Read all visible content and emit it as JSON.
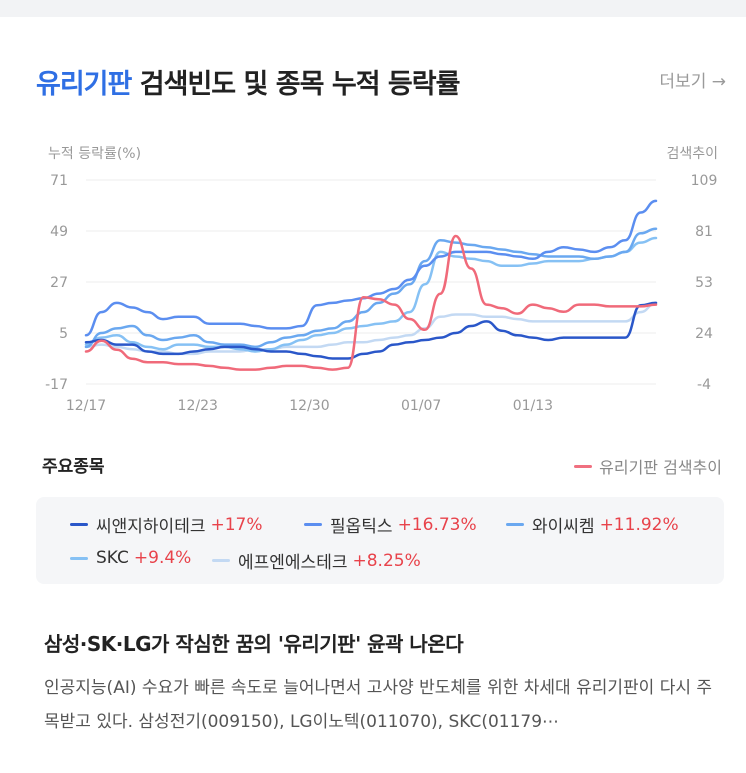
{
  "header": {
    "title_keyword": "유리기판",
    "title_rest": " 검색빈도 및 종목 누적 등락률",
    "more_label": "더보기 →"
  },
  "chart_data": {
    "type": "line",
    "ylabel_left": "누적 등락률(%)",
    "ylabel_right": "검색추이",
    "left_ticks": [
      "71",
      "49",
      "27",
      "5",
      "-17"
    ],
    "right_ticks": [
      "109",
      "81",
      "53",
      "24",
      "-4"
    ],
    "ylim_left": [
      -17,
      71
    ],
    "ylim_right": [
      -4,
      109
    ],
    "x_ticks": [
      "12/17",
      "12/23",
      "12/30",
      "01/07",
      "01/13"
    ],
    "grid": true,
    "series": [
      {
        "name": "씨앤지하이테크",
        "color": "#2a57c9",
        "axis": "left",
        "values": [
          1,
          2,
          0,
          0,
          -3,
          -4,
          -4,
          -3,
          -2,
          -1,
          -1,
          -2,
          -3,
          -3,
          -4,
          -5,
          -6,
          -6,
          -4,
          -3,
          0,
          1,
          2,
          3,
          5,
          8,
          10,
          6,
          4,
          3,
          2,
          3,
          3,
          3,
          3,
          3,
          17,
          18
        ]
      },
      {
        "name": "필옵틱스",
        "color": "#5b8ef0",
        "axis": "left",
        "values": [
          4,
          14,
          18,
          16,
          14,
          11,
          12,
          12,
          9,
          9,
          9,
          8,
          7,
          7,
          8,
          17,
          18,
          19,
          20,
          22,
          24,
          28,
          34,
          38,
          40,
          40,
          40,
          39,
          38,
          37,
          40,
          42,
          41,
          40,
          42,
          45,
          57,
          62
        ]
      },
      {
        "name": "와이씨켐",
        "color": "#6aa8f0",
        "axis": "left",
        "values": [
          -1,
          5,
          7,
          8,
          4,
          2,
          3,
          4,
          1,
          0,
          0,
          -1,
          1,
          3,
          4,
          6,
          7,
          10,
          14,
          18,
          22,
          26,
          36,
          45,
          44,
          43,
          42,
          41,
          40,
          39,
          38,
          38,
          38,
          37,
          38,
          40,
          48,
          50
        ]
      },
      {
        "name": "SKC",
        "color": "#86c1f4",
        "axis": "left",
        "values": [
          0,
          3,
          4,
          1,
          -1,
          -2,
          0,
          0,
          -1,
          -1,
          -2,
          -3,
          -2,
          0,
          2,
          4,
          5,
          7,
          8,
          9,
          10,
          14,
          26,
          40,
          38,
          37,
          36,
          34,
          34,
          35,
          36,
          36,
          36,
          37,
          38,
          40,
          44,
          46
        ]
      },
      {
        "name": "에프엔에스테크",
        "color": "#c3d9f3",
        "axis": "left",
        "values": [
          -1,
          0,
          -1,
          -2,
          -3,
          -3,
          -4,
          -4,
          -3,
          -3,
          -3,
          -2,
          -2,
          -1,
          -1,
          -1,
          0,
          1,
          1,
          2,
          3,
          4,
          7,
          12,
          13,
          13,
          12,
          12,
          11,
          10,
          10,
          10,
          10,
          10,
          10,
          10,
          14,
          18
        ]
      },
      {
        "name": "유리기판 검색추이",
        "color": "#f06a7a",
        "axis": "right",
        "values": [
          14,
          20,
          15,
          10,
          8,
          8,
          7,
          7,
          6,
          5,
          4,
          4,
          5,
          6,
          6,
          5,
          4,
          5,
          44,
          43,
          40,
          32,
          26,
          46,
          78,
          60,
          40,
          38,
          35,
          40,
          38,
          36,
          40,
          40,
          39,
          39,
          39,
          40
        ]
      }
    ]
  },
  "stocks_section": {
    "title": "주요종목",
    "search_legend": "유리기판 검색추이",
    "stocks": [
      {
        "name": "씨앤지하이테크",
        "change": "+17%",
        "color": "#2a57c9"
      },
      {
        "name": "필옵틱스",
        "change": "+16.73%",
        "color": "#5b8ef0"
      },
      {
        "name": "와이씨켐",
        "change": "+11.92%",
        "color": "#6aa8f0"
      },
      {
        "name": "SKC",
        "change": "+9.4%",
        "color": "#86c1f4"
      },
      {
        "name": "에프엔에스테크",
        "change": "+8.25%",
        "color": "#c3d9f3"
      }
    ]
  },
  "news": {
    "title": "삼성·SK·LG가 작심한 꿈의 '유리기판' 윤곽 나온다",
    "body": "인공지능(AI) 수요가 빠른 속도로 늘어나면서 고사양 반도체를 위한 차세대 유리기판이 다시 주목받고 있다. 삼성전기(009150), LG이노텍(011070), SKC(01179⋯"
  }
}
